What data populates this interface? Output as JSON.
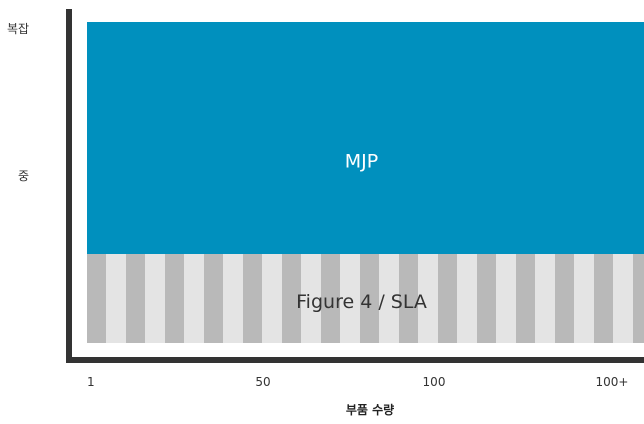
{
  "chart_data": {
    "type": "area",
    "x_ticks": [
      "1",
      "50",
      "100",
      "100+"
    ],
    "y_ticks": [
      "중",
      "복잡"
    ],
    "xlabel": "부품 수량",
    "ylabel": "",
    "regions": [
      {
        "name": "MJP",
        "x_range": [
          "1",
          "100+"
        ],
        "y_range": [
          "중",
          "복잡"
        ],
        "color": "#0090be",
        "pattern": "solid"
      },
      {
        "name": "Figure 4 / SLA",
        "x_range": [
          "1",
          "100+"
        ],
        "y_range": [
          "",
          "중"
        ],
        "color": "#b9b9b9",
        "stripe_color": "#e4e4e4",
        "pattern": "vertical-stripes"
      }
    ],
    "axis_color": "#333333",
    "grid": false,
    "legend": "none"
  }
}
